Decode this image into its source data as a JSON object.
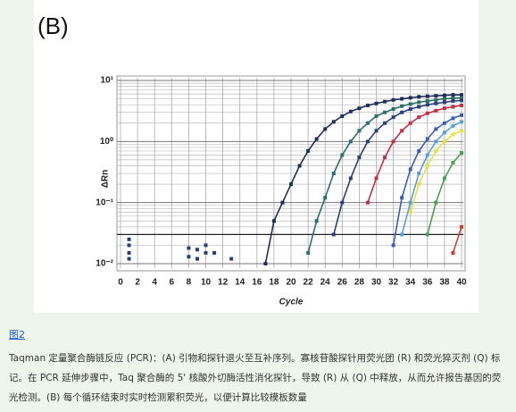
{
  "figure": {
    "panel_label": "(B)",
    "chart_data": {
      "type": "line",
      "x_label": "Cycle",
      "y_label": "ΔRn",
      "xlim": [
        0,
        40
      ],
      "xticks": [
        0,
        2,
        4,
        6,
        8,
        10,
        12,
        14,
        16,
        18,
        20,
        22,
        24,
        26,
        28,
        30,
        32,
        34,
        36,
        38,
        40
      ],
      "ylim": [
        0.01,
        10
      ],
      "log_y": true,
      "yticks": [
        {
          "value": 10,
          "label": "10¹"
        },
        {
          "value": 1,
          "label": "10⁰"
        },
        {
          "value": 0.1,
          "label": "10⁻¹"
        },
        {
          "value": 0.01,
          "label": "10⁻²"
        }
      ],
      "grid": true,
      "threshold": 0.03,
      "series": [
        {
          "color": "#1f2f5a",
          "x": [
            17,
            18,
            19,
            20,
            21,
            22,
            23,
            24,
            25,
            26,
            27,
            28,
            29,
            30,
            31,
            32,
            33,
            34,
            35,
            36,
            37,
            38,
            39,
            40
          ],
          "values": [
            0.01,
            0.05,
            0.1,
            0.2,
            0.4,
            0.7,
            1.1,
            1.6,
            2.1,
            2.6,
            3.1,
            3.5,
            3.9,
            4.2,
            4.5,
            4.8,
            5.0,
            5.2,
            5.4,
            5.5,
            5.6,
            5.7,
            5.8,
            5.8
          ]
        },
        {
          "color": "#2e6e6a",
          "x": [
            22,
            23,
            24,
            25,
            26,
            27,
            28,
            29,
            30,
            31,
            32,
            33,
            34,
            35,
            36,
            37,
            38,
            39,
            40
          ],
          "values": [
            0.015,
            0.05,
            0.12,
            0.3,
            0.6,
            1.0,
            1.5,
            2.0,
            2.6,
            3.0,
            3.4,
            3.8,
            4.1,
            4.4,
            4.6,
            4.8,
            5.0,
            5.1,
            5.2
          ]
        },
        {
          "color": "#2a3f7a",
          "x": [
            25,
            26,
            27,
            28,
            29,
            30,
            31,
            32,
            33,
            34,
            35,
            36,
            37,
            38,
            39,
            40
          ],
          "values": [
            0.03,
            0.1,
            0.25,
            0.55,
            1.0,
            1.5,
            2.0,
            2.5,
            3.0,
            3.4,
            3.7,
            4.0,
            4.2,
            4.4,
            4.6,
            4.7
          ]
        },
        {
          "color": "#c0304a",
          "x": [
            29,
            30,
            31,
            32,
            33,
            34,
            35,
            36,
            37,
            38,
            39,
            40
          ],
          "values": [
            0.1,
            0.25,
            0.55,
            1.0,
            1.5,
            2.0,
            2.5,
            2.9,
            3.2,
            3.5,
            3.7,
            3.9
          ]
        },
        {
          "color": "#3a5fb0",
          "x": [
            32,
            33,
            34,
            35,
            36,
            37,
            38,
            39,
            40
          ],
          "values": [
            0.02,
            0.12,
            0.35,
            0.7,
            1.1,
            1.6,
            2.0,
            2.4,
            2.7
          ]
        },
        {
          "color": "#5aa0d8",
          "x": [
            33,
            34,
            35,
            36,
            37,
            38,
            39,
            40
          ],
          "values": [
            0.03,
            0.1,
            0.3,
            0.6,
            1.0,
            1.4,
            1.8,
            2.1
          ]
        },
        {
          "color": "#e8e040",
          "x": [
            34,
            35,
            36,
            37,
            38,
            39,
            40
          ],
          "values": [
            0.07,
            0.2,
            0.4,
            0.7,
            1.0,
            1.3,
            1.5
          ]
        },
        {
          "color": "#4aa050",
          "x": [
            36,
            37,
            38,
            39,
            40
          ],
          "values": [
            0.03,
            0.1,
            0.25,
            0.45,
            0.65
          ]
        },
        {
          "color": "#d04030",
          "x": [
            39,
            40
          ],
          "values": [
            0.015,
            0.04
          ]
        }
      ],
      "baseline_points": {
        "color": "#2a3f7a",
        "x": [
          1,
          1,
          1,
          1,
          8,
          8,
          9,
          9,
          10,
          10,
          11,
          13
        ],
        "values": [
          0.025,
          0.02,
          0.015,
          0.012,
          0.018,
          0.013,
          0.017,
          0.012,
          0.02,
          0.015,
          0.015,
          0.012
        ]
      }
    }
  },
  "caption": {
    "link": "图2",
    "text": "Taqman 定量聚合酶链反应 (PCR)：(A) 引物和探针退火至互补序列。寡核苷酸探针用荧光团 (R) 和荧光猝灭剂 (Q) 标记。在 PCR 延伸步骤中，Taq 聚合酶的 5' 核酸外切酶活性消化探针，导致 (R) 从 (Q) 中释放，从而允许报告基因的荧光检测。(B) 每个循环结束时实时检测累积荧光，以便计算比较模板数量"
  }
}
